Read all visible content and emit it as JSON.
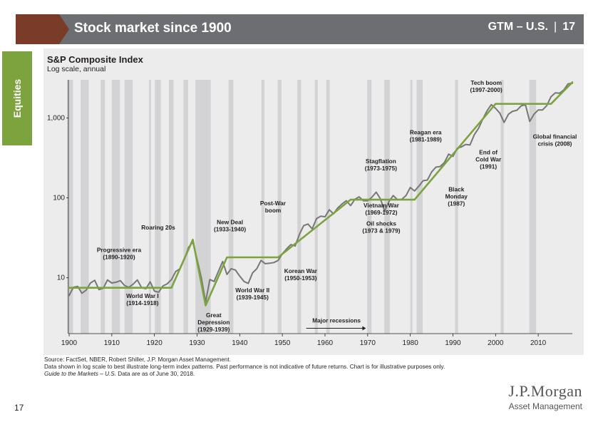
{
  "header": {
    "title": "Stock market since 1900",
    "guide_label": "GTM – U.S.",
    "separator": "|",
    "page_number": "17",
    "accent_color": "#7a3b28",
    "bar_color": "#6d6e71"
  },
  "side_tab": {
    "label": "Equities",
    "color": "#7da33e"
  },
  "chart_data": {
    "type": "line",
    "title": "S&P Composite Index",
    "subtitle": "Log scale, annual",
    "x_range": [
      1900,
      2018
    ],
    "xticks": [
      1900,
      1910,
      1920,
      1930,
      1940,
      1950,
      1960,
      1970,
      1980,
      1990,
      2000,
      2010
    ],
    "y_scale": "log",
    "y_range": [
      2,
      3000
    ],
    "yticks": [
      {
        "value": 10,
        "label": "10"
      },
      {
        "value": 100,
        "label": "100"
      },
      {
        "value": 1000,
        "label": "1,000"
      }
    ],
    "grid": false,
    "series": [
      {
        "color": "#777777",
        "style": "actual index",
        "points": [
          [
            1900,
            6.0
          ],
          [
            1901,
            7.6
          ],
          [
            1902,
            7.8
          ],
          [
            1903,
            6.4
          ],
          [
            1904,
            7.0
          ],
          [
            1905,
            8.6
          ],
          [
            1906,
            9.3
          ],
          [
            1907,
            7.1
          ],
          [
            1908,
            7.4
          ],
          [
            1909,
            9.4
          ],
          [
            1910,
            8.6
          ],
          [
            1911,
            8.8
          ],
          [
            1912,
            9.2
          ],
          [
            1913,
            8.0
          ],
          [
            1914,
            7.6
          ],
          [
            1915,
            8.3
          ],
          [
            1916,
            9.4
          ],
          [
            1917,
            7.5
          ],
          [
            1918,
            7.3
          ],
          [
            1919,
            8.9
          ],
          [
            1920,
            6.8
          ],
          [
            1921,
            6.6
          ],
          [
            1922,
            7.9
          ],
          [
            1923,
            8.4
          ],
          [
            1924,
            9.5
          ],
          [
            1925,
            12.0
          ],
          [
            1926,
            13.0
          ],
          [
            1927,
            17.0
          ],
          [
            1928,
            24.0
          ],
          [
            1929,
            28.0
          ],
          [
            1930,
            17.0
          ],
          [
            1931,
            10.0
          ],
          [
            1932,
            5.0
          ],
          [
            1933,
            9.5
          ],
          [
            1934,
            9.0
          ],
          [
            1935,
            12.0
          ],
          [
            1936,
            16.0
          ],
          [
            1937,
            11.0
          ],
          [
            1938,
            13.0
          ],
          [
            1939,
            12.5
          ],
          [
            1940,
            10.5
          ],
          [
            1941,
            9.0
          ],
          [
            1942,
            8.5
          ],
          [
            1943,
            11.5
          ],
          [
            1944,
            13.0
          ],
          [
            1945,
            16.5
          ],
          [
            1946,
            15.0
          ],
          [
            1947,
            15.2
          ],
          [
            1948,
            15.5
          ],
          [
            1949,
            16.5
          ],
          [
            1950,
            20.0
          ],
          [
            1951,
            23.0
          ],
          [
            1952,
            26.0
          ],
          [
            1953,
            25.0
          ],
          [
            1954,
            35.0
          ],
          [
            1955,
            45.0
          ],
          [
            1956,
            47.0
          ],
          [
            1957,
            41.0
          ],
          [
            1958,
            55.0
          ],
          [
            1959,
            59.0
          ],
          [
            1960,
            58.0
          ],
          [
            1961,
            71.0
          ],
          [
            1962,
            63.0
          ],
          [
            1963,
            75.0
          ],
          [
            1964,
            84.0
          ],
          [
            1965,
            92.0
          ],
          [
            1966,
            80.0
          ],
          [
            1967,
            96.0
          ],
          [
            1968,
            103.0
          ],
          [
            1969,
            92.0
          ],
          [
            1970,
            92.0
          ],
          [
            1971,
            102.0
          ],
          [
            1972,
            118.0
          ],
          [
            1973,
            97.0
          ],
          [
            1974,
            68.0
          ],
          [
            1975,
            90.0
          ],
          [
            1976,
            107.0
          ],
          [
            1977,
            95.0
          ],
          [
            1978,
            96.0
          ],
          [
            1979,
            107.0
          ],
          [
            1980,
            135.0
          ],
          [
            1981,
            122.0
          ],
          [
            1982,
            140.0
          ],
          [
            1983,
            164.0
          ],
          [
            1984,
            167.0
          ],
          [
            1985,
            211.0
          ],
          [
            1986,
            242.0
          ],
          [
            1987,
            247.0
          ],
          [
            1988,
            277.0
          ],
          [
            1989,
            353.0
          ],
          [
            1990,
            330.0
          ],
          [
            1991,
            417.0
          ],
          [
            1992,
            435.0
          ],
          [
            1993,
            466.0
          ],
          [
            1994,
            459.0
          ],
          [
            1995,
            615.0
          ],
          [
            1996,
            740.0
          ],
          [
            1997,
            970.0
          ],
          [
            1998,
            1229.0
          ],
          [
            1999,
            1469.0
          ],
          [
            2000,
            1320.0
          ],
          [
            2001,
            1148.0
          ],
          [
            2002,
            880.0
          ],
          [
            2003,
            1112.0
          ],
          [
            2004,
            1212.0
          ],
          [
            2005,
            1248.0
          ],
          [
            2006,
            1418.0
          ],
          [
            2007,
            1468.0
          ],
          [
            2008,
            903.0
          ],
          [
            2009,
            1115.0
          ],
          [
            2010,
            1258.0
          ],
          [
            2011,
            1258.0
          ],
          [
            2012,
            1426.0
          ],
          [
            2013,
            1848.0
          ],
          [
            2014,
            2059.0
          ],
          [
            2015,
            2044.0
          ],
          [
            2016,
            2239.0
          ],
          [
            2017,
            2674.0
          ],
          [
            2018,
            2718.0
          ]
        ]
      },
      {
        "color": "#7da33e",
        "style": "trend overlay",
        "points": [
          [
            1900,
            7.5
          ],
          [
            1924,
            7.5
          ],
          [
            1929,
            30.0
          ],
          [
            1932,
            4.5
          ],
          [
            1937,
            18.0
          ],
          [
            1949,
            18.0
          ],
          [
            1966,
            95.0
          ],
          [
            1981,
            95.0
          ],
          [
            2000,
            1500.0
          ],
          [
            2013,
            1500.0
          ],
          [
            2018,
            2800.0
          ]
        ]
      }
    ],
    "recessions": [
      [
        1899.5,
        1900.9
      ],
      [
        1902.7,
        1904.6
      ],
      [
        1907.4,
        1908.4
      ],
      [
        1910.0,
        1911.9
      ],
      [
        1913.0,
        1914.9
      ],
      [
        1918.7,
        1919.2
      ],
      [
        1920.1,
        1921.5
      ],
      [
        1923.4,
        1924.5
      ],
      [
        1926.8,
        1927.9
      ],
      [
        1929.6,
        1933.2
      ],
      [
        1937.4,
        1938.5
      ],
      [
        1945.1,
        1945.8
      ],
      [
        1948.9,
        1949.8
      ],
      [
        1953.5,
        1954.4
      ],
      [
        1957.6,
        1958.3
      ],
      [
        1960.3,
        1961.1
      ],
      [
        1969.9,
        1970.9
      ],
      [
        1973.9,
        1975.2
      ],
      [
        1980.0,
        1980.5
      ],
      [
        1981.5,
        1982.9
      ],
      [
        1990.5,
        1991.2
      ],
      [
        2001.2,
        2001.9
      ],
      [
        2007.9,
        2009.5
      ]
    ],
    "annotations": [
      {
        "lines": [
          "Progressive era",
          "(1890-1920)"
        ],
        "x": 1911.7,
        "y": 21
      },
      {
        "lines": [
          "World War I",
          "(1914-1918)"
        ],
        "x": 1917.2,
        "y": 5.6
      },
      {
        "lines": [
          "Roaring 20s"
        ],
        "x": 1920.9,
        "y": 40
      },
      {
        "lines": [
          "Great",
          "Depression",
          "(1929-1939)"
        ],
        "x": 1933.9,
        "y": 3.2
      },
      {
        "lines": [
          "New Deal",
          "(1933-1940)"
        ],
        "x": 1937.7,
        "y": 47
      },
      {
        "lines": [
          "World War II",
          "(1939-1945)"
        ],
        "x": 1943,
        "y": 6.6
      },
      {
        "lines": [
          "Post-War",
          "boom"
        ],
        "x": 1947.8,
        "y": 81
      },
      {
        "lines": [
          "Korean War",
          "(1950-1953)"
        ],
        "x": 1954.3,
        "y": 11.5
      },
      {
        "lines": [
          "Stagflation",
          "(1973-1975)"
        ],
        "x": 1973.1,
        "y": 270
      },
      {
        "lines": [
          "Vietnam War",
          "(1969-1972)"
        ],
        "x": 1973.2,
        "y": 76
      },
      {
        "lines": [
          "Oil shocks",
          "(1973 & 1979)"
        ],
        "x": 1973.2,
        "y": 45
      },
      {
        "lines": [
          "Reagan era",
          "(1981-1989)"
        ],
        "x": 1983.6,
        "y": 620
      },
      {
        "lines": [
          "Black",
          "Monday",
          "(1987)"
        ],
        "x": 1990.8,
        "y": 121
      },
      {
        "lines": [
          "End of",
          "Cold War",
          "(1991)"
        ],
        "x": 1998.3,
        "y": 350
      },
      {
        "lines": [
          "Tech boom",
          "(1997-2000)"
        ],
        "x": 1997.8,
        "y": 2600
      },
      {
        "lines": [
          "Global financial",
          "crisis (2008)"
        ],
        "x": 2013.9,
        "y": 550
      },
      {
        "lines": [
          "Major recessions"
        ],
        "x": 1962.7,
        "y": 2.75
      }
    ]
  },
  "footnotes": {
    "source": "Source: FactSet, NBER, Robert Shiller, J.P. Morgan Asset Management.",
    "disclaimer": "Data shown in log scale to best illustrate long-term index patterns. Past performance is not indicative of future returns. Chart is for illustrative purposes only.",
    "guide_name": "Guide to the Markets – U.S.",
    "as_of": " Data are as of June 30, 2018."
  },
  "page_number": "17",
  "logo": {
    "name": "J.P.Morgan",
    "subtitle": "Asset Management"
  }
}
